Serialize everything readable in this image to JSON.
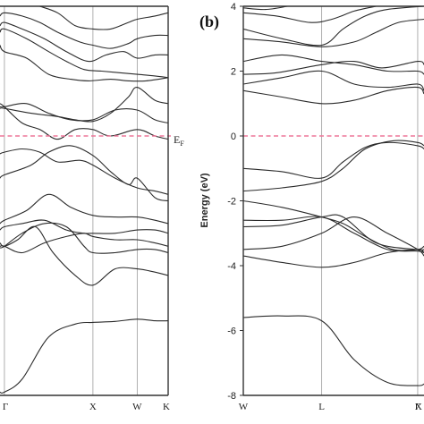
{
  "figure": {
    "panel_label": "(b)",
    "fermi_label": "E",
    "fermi_sub": "F"
  },
  "chart_data": [
    {
      "type": "line",
      "panel": "a",
      "xlabel": "",
      "ylabel": "",
      "k_labels": [
        "Γ",
        "X",
        "W",
        "K"
      ],
      "k_positions": [
        0,
        1,
        1.5,
        1.85
      ],
      "xlim": [
        -0.05,
        1.85
      ],
      "ylim": [
        -8,
        4
      ],
      "fermi_level": 0,
      "series": [
        {
          "x": [
            -0.05,
            0,
            0.2,
            0.5,
            0.8,
            1.0,
            1.25,
            1.5,
            1.7,
            1.85
          ],
          "y": [
            -7.9,
            -7.9,
            -7.5,
            -6.2,
            -5.8,
            -5.75,
            -5.72,
            -5.65,
            -5.7,
            -5.7
          ]
        },
        {
          "x": [
            -0.05,
            0,
            0.15,
            0.35,
            0.55,
            0.8,
            1.0,
            1.25,
            1.5,
            1.7,
            1.85
          ],
          "y": [
            -3.3,
            -3.4,
            -3.2,
            -2.8,
            -3.6,
            -4.3,
            -4.6,
            -4.1,
            -4.1,
            -4.2,
            -4.3
          ]
        },
        {
          "x": [
            -0.05,
            0,
            0.2,
            0.45,
            0.7,
            0.9,
            1.0,
            1.25,
            1.5,
            1.7,
            1.85
          ],
          "y": [
            -3.4,
            -3.4,
            -3.6,
            -3.3,
            -3.1,
            -3.0,
            -3.1,
            -3.2,
            -3.2,
            -3.3,
            -3.4
          ]
        },
        {
          "x": [
            -0.05,
            0,
            0.2,
            0.45,
            0.7,
            0.9,
            1.0,
            1.25,
            1.5,
            1.7,
            1.85
          ],
          "y": [
            -3.45,
            -3.4,
            -3.0,
            -2.7,
            -2.8,
            -3.4,
            -3.6,
            -3.6,
            -3.5,
            -3.5,
            -3.6
          ]
        },
        {
          "x": [
            -0.05,
            0,
            0.2,
            0.45,
            0.7,
            0.9,
            1.0,
            1.25,
            1.5,
            1.7,
            1.85
          ],
          "y": [
            -2.9,
            -2.8,
            -2.7,
            -2.6,
            -2.9,
            -3.0,
            -3.0,
            -3.0,
            -2.9,
            -2.9,
            -3.0
          ]
        },
        {
          "x": [
            -0.05,
            0,
            0.25,
            0.5,
            0.75,
            1.0,
            1.25,
            1.5,
            1.7,
            1.85
          ],
          "y": [
            -2.7,
            -2.6,
            -2.3,
            -1.8,
            -2.2,
            -2.45,
            -2.5,
            -2.5,
            -2.6,
            -2.7
          ]
        },
        {
          "x": [
            -0.05,
            0,
            0.3,
            0.5,
            0.75,
            1.0,
            1.2,
            1.4,
            1.5,
            1.7,
            1.85
          ],
          "y": [
            -1.3,
            -1.2,
            -0.9,
            -0.5,
            -0.3,
            -0.6,
            -1.1,
            -1.5,
            -1.3,
            -1.9,
            -2.0
          ]
        },
        {
          "x": [
            -0.05,
            0,
            0.2,
            0.4,
            0.6,
            0.85,
            1.0,
            1.25,
            1.5,
            1.7,
            1.85
          ],
          "y": [
            -0.55,
            -0.5,
            -0.4,
            -0.5,
            -0.8,
            -0.75,
            -0.9,
            -1.3,
            -1.6,
            -1.7,
            -1.8
          ]
        },
        {
          "x": [
            -0.05,
            0,
            0.2,
            0.4,
            0.6,
            0.8,
            1.0,
            1.2,
            1.5,
            1.7,
            1.85
          ],
          "y": [
            1.0,
            0.9,
            0.4,
            0.2,
            -0.1,
            0.2,
            0.2,
            0.0,
            0.2,
            0.0,
            -0.1
          ]
        },
        {
          "x": [
            -0.05,
            0,
            0.25,
            0.5,
            0.75,
            1.0,
            1.25,
            1.5,
            1.7,
            1.85
          ],
          "y": [
            0.9,
            0.9,
            1.0,
            0.7,
            0.5,
            0.5,
            0.8,
            0.8,
            0.5,
            0.4
          ]
        },
        {
          "x": [
            -0.05,
            0,
            0.3,
            0.6,
            0.8,
            1.0,
            1.2,
            1.4,
            1.5,
            1.7,
            1.85
          ],
          "y": [
            0.85,
            0.85,
            0.7,
            0.6,
            0.5,
            0.45,
            0.7,
            1.2,
            1.5,
            1.1,
            1.0
          ]
        },
        {
          "x": [
            -0.05,
            0,
            0.25,
            0.5,
            0.75,
            0.95,
            1.2,
            1.4,
            1.6,
            1.85
          ],
          "y": [
            2.8,
            2.6,
            2.4,
            1.9,
            1.75,
            1.7,
            1.75,
            1.7,
            1.7,
            1.8
          ]
        },
        {
          "x": [
            -0.05,
            0,
            0.25,
            0.5,
            0.7,
            0.9,
            1.1,
            1.3,
            1.5,
            1.7,
            1.85
          ],
          "y": [
            3.2,
            3.3,
            3.0,
            2.6,
            2.3,
            2.05,
            2.0,
            1.95,
            1.9,
            1.85,
            1.8
          ]
        },
        {
          "x": [
            -0.05,
            0,
            0.2,
            0.45,
            0.7,
            0.95,
            1.15,
            1.35,
            1.5,
            1.7,
            1.85
          ],
          "y": [
            3.4,
            3.5,
            3.3,
            3.0,
            2.6,
            2.3,
            2.5,
            2.6,
            2.4,
            2.5,
            2.5
          ]
        },
        {
          "x": [
            -0.05,
            0,
            0.2,
            0.4,
            0.6,
            0.85,
            1.0,
            1.2,
            1.4,
            1.5,
            1.7,
            1.85
          ],
          "y": [
            3.7,
            3.8,
            3.7,
            3.5,
            3.2,
            2.9,
            2.8,
            2.7,
            2.85,
            3.0,
            3.1,
            3.1
          ]
        },
        {
          "x": [
            0.4,
            0.6,
            0.8,
            1.0,
            1.2,
            1.4,
            1.5,
            1.7,
            1.85
          ],
          "y": [
            4.0,
            3.8,
            3.4,
            3.3,
            3.3,
            3.5,
            3.6,
            3.7,
            3.8
          ]
        }
      ]
    },
    {
      "type": "line",
      "panel": "b",
      "xlabel": "",
      "ylabel": "Energy (eV)",
      "k_labels": [
        "W",
        "L",
        "Γ",
        "X"
      ],
      "k_positions": [
        0,
        0.7071,
        1.5731,
        1.63
      ],
      "xlim": [
        0,
        1.63
      ],
      "ylim": [
        -8,
        4
      ],
      "yticks": [
        4,
        2,
        0,
        -2,
        -4,
        -6,
        -8
      ],
      "fermi_level": 0,
      "series": [
        {
          "x": [
            0,
            0.35,
            0.7071,
            1.0,
            1.3,
            1.5731,
            1.63
          ],
          "y": [
            -5.6,
            -5.55,
            -5.7,
            -6.9,
            -7.6,
            -7.7,
            -7.65
          ]
        },
        {
          "x": [
            0,
            0.35,
            0.7071,
            1.0,
            1.3,
            1.5731,
            1.63
          ],
          "y": [
            -3.7,
            -3.9,
            -4.05,
            -3.9,
            -3.6,
            -3.5,
            -3.6
          ]
        },
        {
          "x": [
            0,
            0.35,
            0.7071,
            1.0,
            1.3,
            1.5731,
            1.63
          ],
          "y": [
            -3.5,
            -3.4,
            -3.0,
            -2.5,
            -3.0,
            -3.5,
            -3.7
          ]
        },
        {
          "x": [
            0,
            0.35,
            0.7071,
            0.9,
            1.2,
            1.5731,
            1.63
          ],
          "y": [
            -2.8,
            -2.75,
            -2.5,
            -2.5,
            -3.3,
            -3.5,
            -3.5
          ]
        },
        {
          "x": [
            0,
            0.35,
            0.7071,
            1.0,
            1.3,
            1.5731,
            1.63
          ],
          "y": [
            -2.6,
            -2.6,
            -2.5,
            -3.0,
            -3.5,
            -3.55,
            -3.6
          ]
        },
        {
          "x": [
            0,
            0.35,
            0.7071,
            0.9,
            1.1,
            1.35,
            1.5731,
            1.63
          ],
          "y": [
            -2.0,
            -2.2,
            -2.5,
            -2.7,
            -3.1,
            -3.5,
            -3.5,
            -3.4
          ]
        },
        {
          "x": [
            0,
            0.35,
            0.7071,
            0.9,
            1.1,
            1.35,
            1.5731,
            1.63
          ],
          "y": [
            -1.7,
            -1.6,
            -1.4,
            -1.0,
            -0.4,
            -0.15,
            -0.2,
            -0.3
          ]
        },
        {
          "x": [
            0,
            0.35,
            0.7071,
            0.9,
            1.1,
            1.3,
            1.5731,
            1.63
          ],
          "y": [
            -1.0,
            -1.1,
            -1.3,
            -0.8,
            -0.35,
            -0.2,
            -0.3,
            -0.4
          ]
        },
        {
          "x": [
            0,
            0.35,
            0.7071,
            1.0,
            1.3,
            1.5731,
            1.63
          ],
          "y": [
            1.4,
            1.2,
            1.0,
            1.1,
            1.4,
            1.5,
            1.3
          ]
        },
        {
          "x": [
            0,
            0.35,
            0.7071,
            1.0,
            1.3,
            1.5731,
            1.63
          ],
          "y": [
            1.6,
            1.8,
            2.0,
            1.6,
            1.5,
            1.6,
            1.4
          ]
        },
        {
          "x": [
            0,
            0.3,
            0.7071,
            1.0,
            1.25,
            1.5731,
            1.63
          ],
          "y": [
            1.9,
            1.95,
            2.2,
            2.3,
            2.1,
            2.3,
            2.2
          ]
        },
        {
          "x": [
            0,
            0.35,
            0.7071,
            1.0,
            1.3,
            1.5731,
            1.63
          ],
          "y": [
            2.3,
            2.5,
            2.3,
            2.2,
            2.0,
            2.0,
            1.9
          ]
        },
        {
          "x": [
            0,
            0.35,
            0.7071,
            1.0,
            1.2,
            1.4,
            1.63
          ],
          "y": [
            3.0,
            2.9,
            2.75,
            2.9,
            3.2,
            3.5,
            3.6
          ]
        },
        {
          "x": [
            0,
            0.35,
            0.7071,
            0.9,
            1.1,
            1.3,
            1.63
          ],
          "y": [
            3.3,
            3.0,
            2.8,
            3.3,
            3.7,
            3.9,
            4.0
          ]
        },
        {
          "x": [
            0,
            0.3,
            0.6,
            0.8,
            1.0,
            1.2
          ],
          "y": [
            3.8,
            3.7,
            3.5,
            3.6,
            3.85,
            4.0
          ]
        },
        {
          "x": [
            0,
            0.2,
            0.4
          ],
          "y": [
            3.95,
            3.9,
            4.0
          ]
        }
      ]
    }
  ]
}
